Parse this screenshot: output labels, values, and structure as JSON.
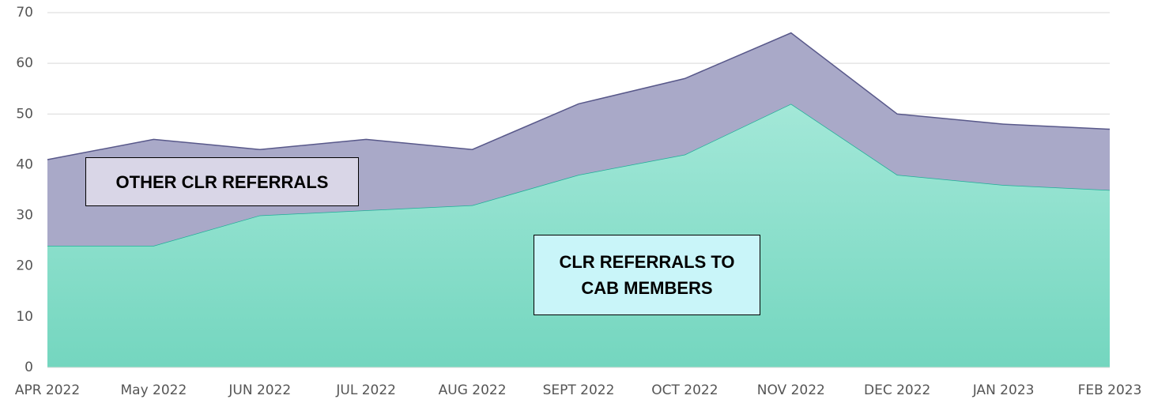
{
  "chart_data": {
    "type": "stacked_area",
    "categories": [
      "APR 2022",
      "May 2022",
      "JUN 2022",
      "JUL 2022",
      "AUG 2022",
      "SEPT 2022",
      "OCT 2022",
      "NOV 2022",
      "DEC 2022",
      "JAN 2023",
      "FEB 2023"
    ],
    "series": [
      {
        "name": "CLR REFERRALS TO CAB MEMBERS",
        "color": "#7fdac5",
        "values": [
          24,
          24,
          30,
          31,
          32,
          38,
          42,
          52,
          38,
          36,
          35
        ]
      },
      {
        "name": "OTHER CLR REFERRALS",
        "color": "#a9a9c8",
        "values": [
          17,
          21,
          13,
          14,
          11,
          14,
          15,
          14,
          12,
          12,
          12
        ]
      }
    ],
    "ylim": [
      0,
      70
    ],
    "yticks": [
      0,
      10,
      20,
      30,
      40,
      50,
      60,
      70
    ],
    "grid": true
  }
}
